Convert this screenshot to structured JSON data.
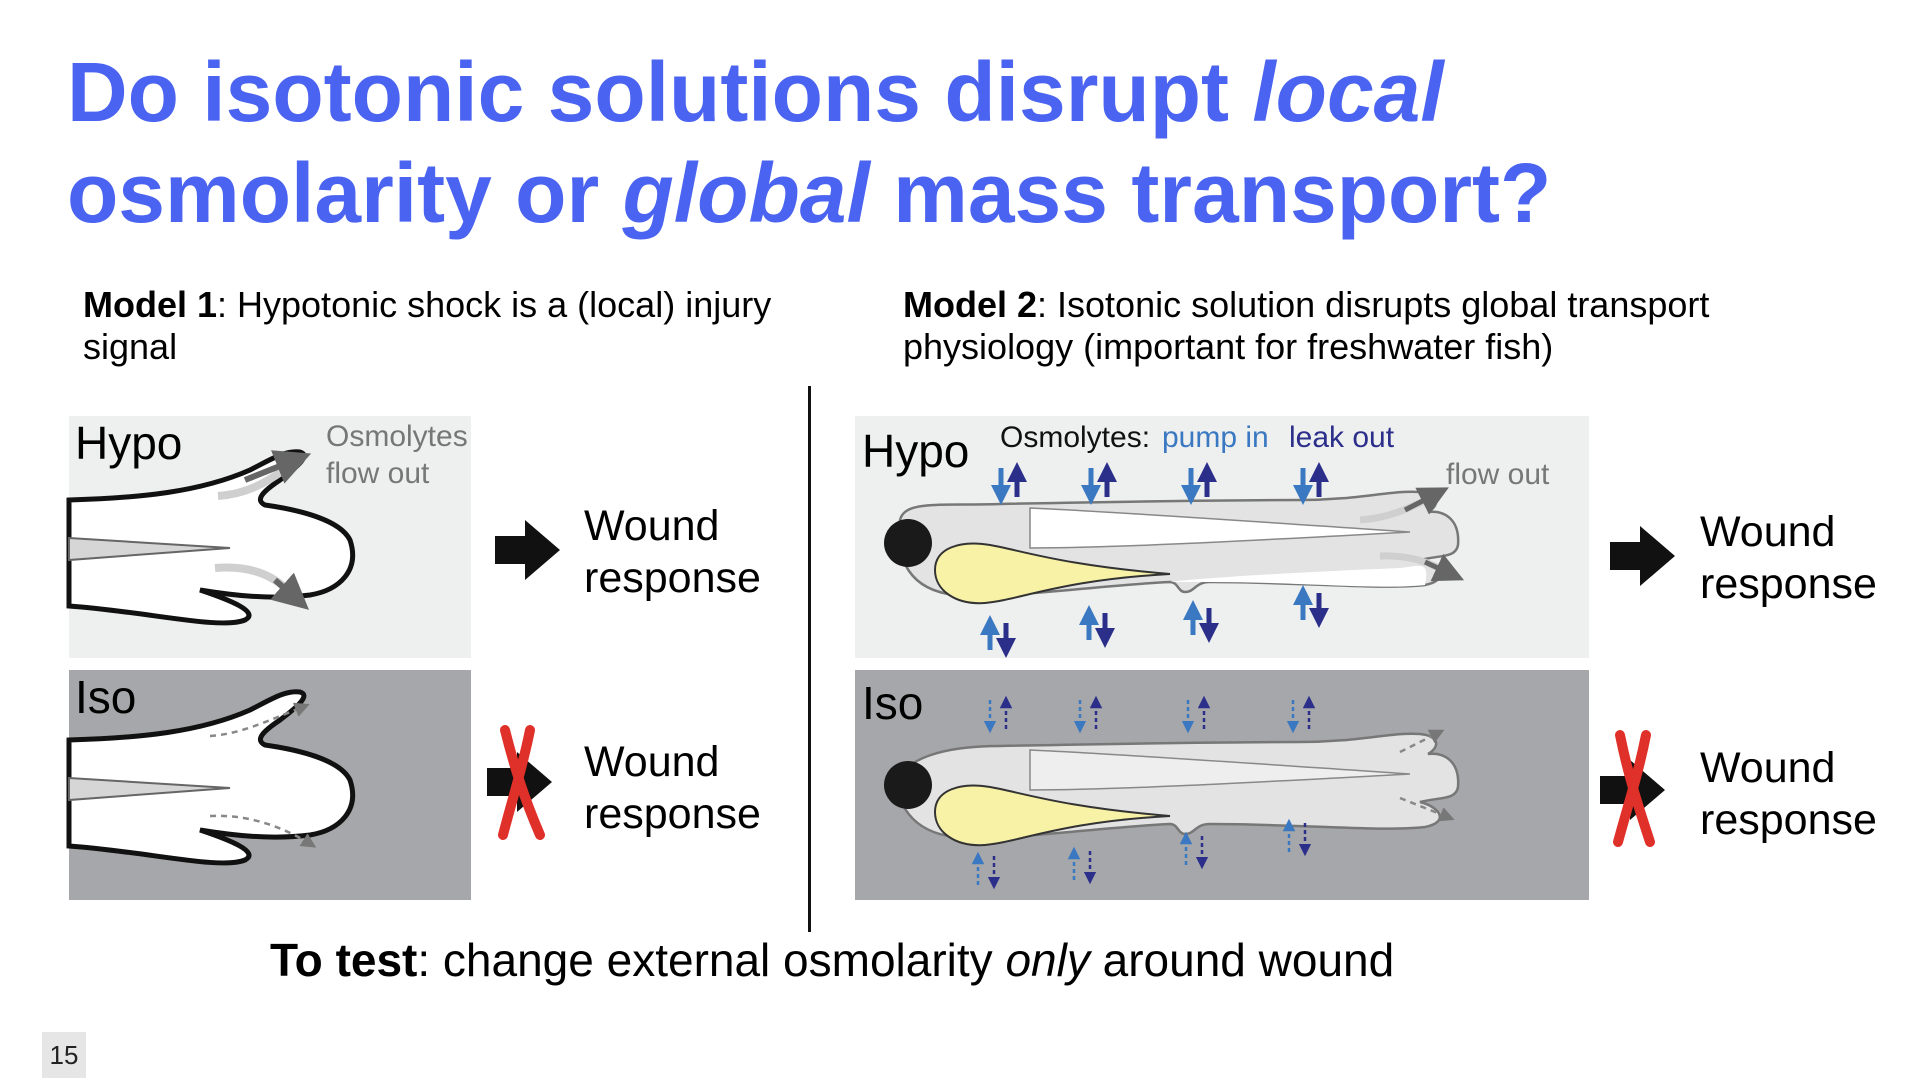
{
  "title": {
    "part1": "Do isotonic solutions disrupt ",
    "part1_italic": "local",
    "part2_italic": "global",
    "part2_a": "osmolarity or ",
    "part2_b": " mass transport?"
  },
  "model1": {
    "heading": "Model 1",
    "text": ": Hypotonic shock is a (local) injury signal"
  },
  "model2": {
    "heading": "Model 2",
    "text": ": Isotonic solution disrupts global transport physiology (important for freshwater fish)"
  },
  "panels": {
    "hypo_label": "Hypo",
    "iso_label": "Iso",
    "osmolytes_flow_out": "Osmolytes flow out",
    "osmolytes_label": "Osmolytes:",
    "pump_in": "pump in",
    "leak_out": "leak out",
    "flow_out": "flow out",
    "wound_response": "Wound response"
  },
  "colors": {
    "title": "#4a63f0",
    "hypo_bg": "#eef0ef",
    "iso_bg": "#a6a7aa",
    "pump_in": "#3a78c2",
    "leak_out": "#2b2f8a",
    "yolk": "#f7f2a6",
    "red_x": "#e0302a"
  },
  "footer": {
    "bold": "To test",
    "text1": ": change external osmolarity ",
    "italic": "only",
    "text2": " around wound"
  },
  "page_number": "15"
}
